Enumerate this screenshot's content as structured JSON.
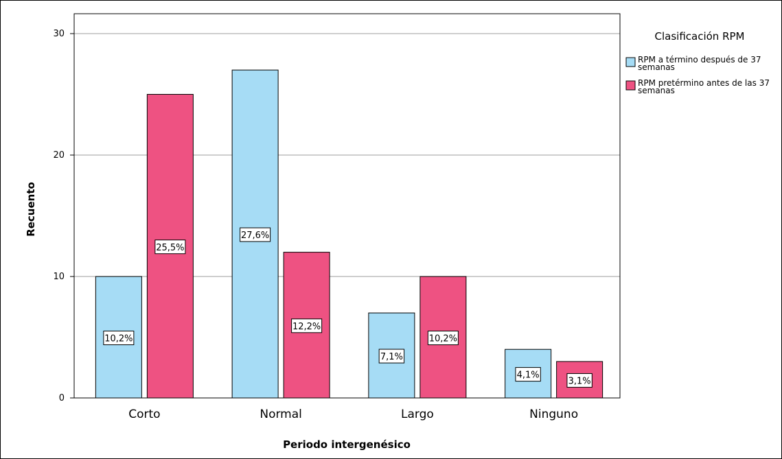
{
  "chart_data": {
    "type": "bar",
    "categories": [
      "Corto",
      "Normal",
      "Largo",
      "Ninguno"
    ],
    "series": [
      {
        "name_lines": [
          "RPM a término después de 37",
          "semanas"
        ],
        "color": "#a6dcf5",
        "values": [
          10,
          27,
          7,
          4
        ],
        "labels": [
          "10,2%",
          "27,6%",
          "7,1%",
          "4,1%"
        ]
      },
      {
        "name_lines": [
          "RPM pretérmino antes de las 37",
          "semanas"
        ],
        "color": "#ee5282",
        "values": [
          25,
          12,
          10,
          3
        ],
        "labels": [
          "25,5%",
          "12,2%",
          "10,2%",
          "3,1%"
        ]
      }
    ],
    "ylim": [
      0,
      30
    ],
    "yticks": [
      0,
      10,
      20,
      30
    ],
    "xlabel": "Periodo intergenésico",
    "ylabel": "Recuento",
    "legend": {
      "title": "Clasificación RPM",
      "position": "right"
    },
    "grid": true
  }
}
